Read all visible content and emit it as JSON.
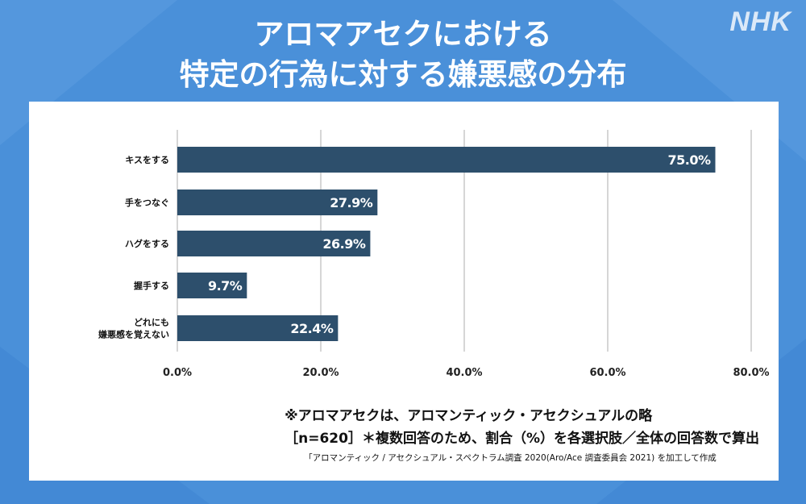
{
  "header": {
    "logo": "NHK",
    "title_line1": "アロマアセクにおける",
    "title_line2": "特定の行為に対する嫌悪感の分布"
  },
  "colors": {
    "background": "#4a90d9",
    "bar": "#2d4f6c",
    "grid": "#c8c8c8",
    "card": "#ffffff"
  },
  "chart_data": {
    "type": "bar",
    "orientation": "horizontal",
    "categories": [
      "キスをする",
      "手をつなぐ",
      "ハグをする",
      "握手する",
      "どれにも\n嫌悪感を覚えない"
    ],
    "values": [
      75.0,
      27.9,
      26.9,
      9.7,
      22.4
    ],
    "value_labels": [
      "75.0%",
      "27.9%",
      "26.9%",
      "9.7%",
      "22.4%"
    ],
    "xlim": [
      0,
      80
    ],
    "xticks": [
      "0.0%",
      "20.0%",
      "40.0%",
      "60.0%",
      "80.0%"
    ],
    "grid": "vertical",
    "legend": "none"
  },
  "notes": {
    "line1": "※アロマアセクは、アロマンティック・アセクシュアルの略",
    "line2": "［n=620］＊複数回答のため、割合（%）を各選択肢／全体の回答数で算出",
    "line3": "「アロマンティック / アセクシュアル・スペクトラム調査 2020(Aro/Ace 調査委員会 2021) を加工して作成"
  }
}
